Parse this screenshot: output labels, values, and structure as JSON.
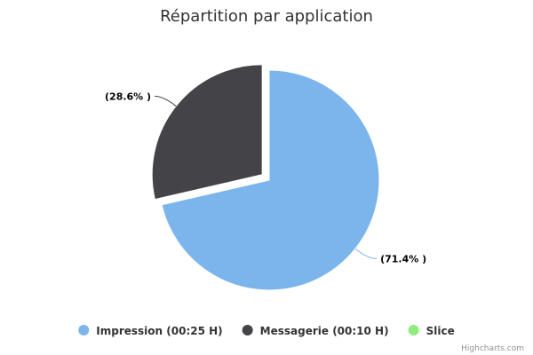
{
  "chart_data": {
    "type": "pie",
    "title": "Répartition par application",
    "series": [
      {
        "name": "Impression (00:25 H)",
        "value": 71.4,
        "label": "(71.4% )",
        "color": "#7cb5ec",
        "sliced": false
      },
      {
        "name": "Messagerie (00:10 H)",
        "value": 28.6,
        "label": "(28.6% )",
        "color": "#434348",
        "sliced": true
      },
      {
        "name": "Slice",
        "value": 0,
        "label": "",
        "color": "#90ed7d",
        "sliced": false
      }
    ],
    "legend": {
      "position": "bottom-center"
    }
  },
  "credits": "Highcharts.com"
}
